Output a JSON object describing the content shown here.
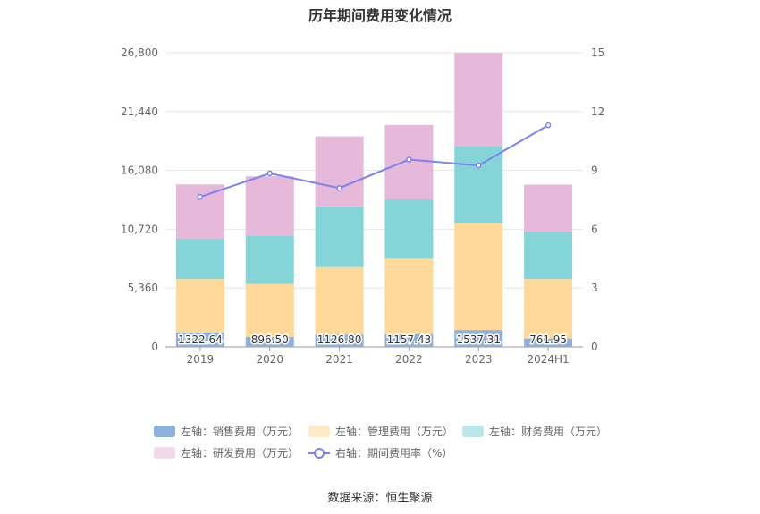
{
  "title": "历年期间费用变化情况",
  "source": "数据来源：恒生聚源",
  "colors": {
    "sales": "#8eb0dc",
    "admin": "#ffd99a",
    "finance": "#85d4d8",
    "rd": "#e6b9da",
    "rate": "#7b83ef",
    "grid": "#e6e6e6",
    "axis_text": "#666666"
  },
  "chart_data": {
    "type": "bar",
    "stacked": true,
    "categories": [
      "2019",
      "2020",
      "2021",
      "2022",
      "2023",
      "2024H1"
    ],
    "series": [
      {
        "name": "左轴：销售费用（万元）",
        "axis": "left",
        "values": [
          1322.64,
          896.5,
          1126.8,
          1157.43,
          1537.31,
          761.95
        ],
        "labels": [
          "1322.64",
          "896.50",
          "1126.80",
          "1157.43",
          "1537.31",
          "761.95"
        ]
      },
      {
        "name": "左轴：管理费用（万元）",
        "axis": "left",
        "values": [
          4850,
          4820,
          6150,
          6880,
          9740,
          5420
        ]
      },
      {
        "name": "左轴：财务费用（万元）",
        "axis": "left",
        "values": [
          3700,
          4450,
          5450,
          5400,
          7030,
          4320
        ]
      },
      {
        "name": "左轴：研发费用（万元）",
        "axis": "left",
        "values": [
          4930,
          5380,
          6450,
          6780,
          8490,
          4280
        ]
      },
      {
        "name": "右轴：期间费用率（%）",
        "axis": "right",
        "type": "line",
        "values": [
          7.65,
          8.85,
          8.1,
          9.55,
          9.25,
          11.3
        ]
      }
    ],
    "left_axis": {
      "min": 0,
      "max": 26800,
      "ticks": [
        "0",
        "5,360",
        "10,720",
        "16,080",
        "21,440",
        "26,800"
      ]
    },
    "right_axis": {
      "min": 0,
      "max": 15,
      "ticks": [
        "0",
        "3",
        "6",
        "9",
        "12",
        "15"
      ]
    },
    "grid": true,
    "legend_position": "bottom"
  }
}
